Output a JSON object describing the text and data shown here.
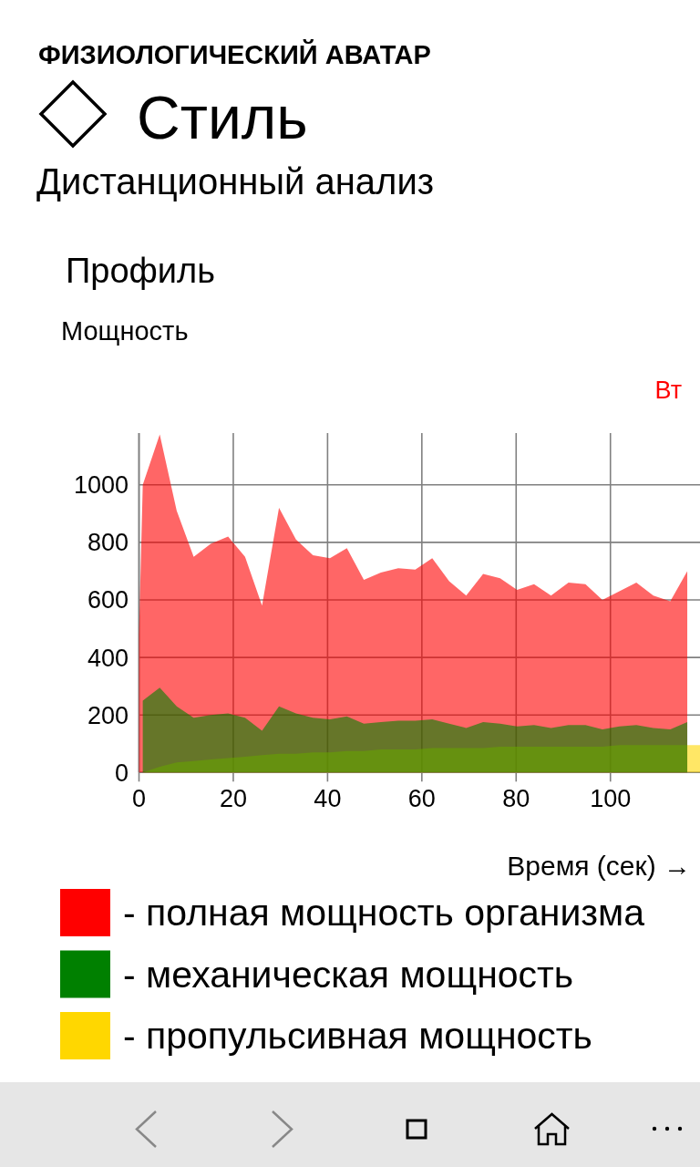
{
  "chart_data": {
    "type": "area",
    "title": "Профиль",
    "subtitle": "Мощность",
    "ylabel": "Вт",
    "xlabel": "Время (сек) →",
    "annotations": [
      "ФИЗИОЛОГИЧЕСКИЙ АВАТАР",
      "Стиль",
      "Дистанционный анализ"
    ],
    "x": [
      0.8,
      4.4,
      8.0,
      11.6,
      15.2,
      18.9,
      22.5,
      26.1,
      29.7,
      33.3,
      36.9,
      40.5,
      44.1,
      47.7,
      51.3,
      55.0,
      58.6,
      62.2,
      65.8,
      69.4,
      73.0,
      76.6,
      80.2,
      83.8,
      87.4,
      91.1,
      94.7,
      98.3,
      101.9,
      105.5,
      109.1,
      112.7,
      116.3
    ],
    "series": [
      {
        "name": "- полная мощность организма",
        "color": "#ff0000",
        "x": [
          0,
          0.8,
          4.4,
          8.0,
          11.6,
          15.2,
          18.9,
          22.5,
          26.1,
          29.7,
          33.3,
          36.9,
          40.5,
          44.1,
          47.7,
          51.3,
          55.0,
          58.6,
          62.2,
          65.8,
          69.4,
          73.0,
          76.6,
          80.2,
          83.8,
          87.4,
          91.1,
          94.7,
          98.3,
          101.9,
          105.5,
          109.1,
          112.7,
          116.3
        ],
        "values": [
          480,
          1000,
          1175,
          910,
          750,
          795,
          820,
          750,
          580,
          920,
          810,
          755,
          745,
          780,
          670,
          695,
          710,
          705,
          745,
          665,
          615,
          690,
          675,
          635,
          655,
          615,
          660,
          655,
          600,
          630,
          660,
          615,
          595,
          700
        ]
      },
      {
        "name": "- механическая мощность",
        "color": "#008000",
        "values": [
          250,
          295,
          230,
          190,
          200,
          205,
          190,
          145,
          230,
          205,
          190,
          185,
          195,
          170,
          175,
          180,
          180,
          185,
          170,
          155,
          175,
          170,
          160,
          165,
          155,
          165,
          165,
          150,
          160,
          165,
          155,
          150,
          175
        ]
      },
      {
        "name": "- пропульсивная мощность",
        "color": "#ffd700",
        "x": [
          0.8,
          4.4,
          8.0,
          11.6,
          15.2,
          18.9,
          22.5,
          26.1,
          29.7,
          33.3,
          36.9,
          40.5,
          44.1,
          47.7,
          51.3,
          55.0,
          58.6,
          62.2,
          65.8,
          69.4,
          73.0,
          76.6,
          80.2,
          83.8,
          87.4,
          91.1,
          94.7,
          98.3,
          101.9,
          105.5,
          109.1,
          112.7,
          116.3,
          119
        ],
        "values": [
          0,
          20,
          35,
          40,
          45,
          50,
          55,
          60,
          65,
          65,
          70,
          70,
          75,
          75,
          80,
          80,
          80,
          85,
          85,
          85,
          85,
          90,
          90,
          90,
          90,
          90,
          90,
          90,
          95,
          95,
          95,
          95,
          95,
          95
        ]
      }
    ],
    "xlim": [
      0,
      119
    ],
    "ylim": [
      0,
      1180
    ],
    "xticks": [
      0,
      20,
      40,
      60,
      80,
      100
    ],
    "yticks": [
      0,
      200,
      400,
      600,
      800,
      1000
    ],
    "grid": true,
    "legend": "bottom"
  }
}
